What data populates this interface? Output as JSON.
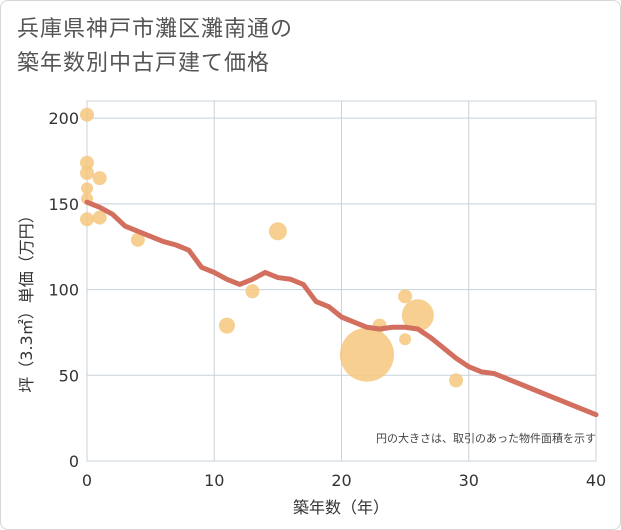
{
  "title_lines": [
    "兵庫県神戸市灘区灘南通の",
    "築年数別中古戸建て価格"
  ],
  "chart_data": {
    "type": "scatter",
    "title": "兵庫県神戸市灘区灘南通の築年数別中古戸建て価格",
    "xlabel": "築年数（年）",
    "ylabel": "坪（3.3㎡）単価（万円）",
    "xlim": [
      0,
      40
    ],
    "ylim": [
      0,
      210
    ],
    "xticks": [
      0,
      10,
      20,
      30,
      40
    ],
    "yticks": [
      0,
      50,
      100,
      150,
      200
    ],
    "annotation": "円の大きさは、取引のあった物件面積を示す",
    "colors": {
      "points": "#f5c77e",
      "trend": "#d26f5e",
      "grid": "#c8d3dc"
    },
    "points": [
      {
        "x": 0,
        "y": 202,
        "size": 7
      },
      {
        "x": 0,
        "y": 174,
        "size": 7
      },
      {
        "x": 0,
        "y": 168,
        "size": 7
      },
      {
        "x": 0,
        "y": 159,
        "size": 6
      },
      {
        "x": 0,
        "y": 153,
        "size": 6
      },
      {
        "x": 0,
        "y": 141,
        "size": 7
      },
      {
        "x": 1,
        "y": 165,
        "size": 7
      },
      {
        "x": 1,
        "y": 142,
        "size": 7
      },
      {
        "x": 4,
        "y": 129,
        "size": 7
      },
      {
        "x": 11,
        "y": 79,
        "size": 8
      },
      {
        "x": 13,
        "y": 99,
        "size": 7
      },
      {
        "x": 15,
        "y": 134,
        "size": 9
      },
      {
        "x": 22,
        "y": 62,
        "size": 27
      },
      {
        "x": 23,
        "y": 79,
        "size": 7
      },
      {
        "x": 25,
        "y": 96,
        "size": 7
      },
      {
        "x": 25,
        "y": 71,
        "size": 6
      },
      {
        "x": 26,
        "y": 85,
        "size": 16
      },
      {
        "x": 29,
        "y": 47,
        "size": 7
      }
    ],
    "trend": {
      "x": [
        0,
        1,
        2,
        3,
        4,
        5,
        6,
        7,
        8,
        9,
        10,
        11,
        12,
        13,
        14,
        15,
        16,
        17,
        18,
        19,
        20,
        21,
        22,
        23,
        24,
        25,
        26,
        27,
        28,
        29,
        30,
        31,
        32,
        33,
        34,
        35,
        36,
        37,
        38,
        39,
        40
      ],
      "y": [
        151,
        148,
        144,
        137,
        134,
        131,
        128,
        126,
        123,
        113,
        110,
        106,
        103,
        106,
        110,
        107,
        106,
        103,
        93,
        90,
        84,
        81,
        78,
        77,
        78,
        78,
        77,
        72,
        66,
        60,
        55,
        52,
        51,
        48,
        45,
        42,
        39,
        36,
        33,
        30,
        27
      ]
    }
  }
}
